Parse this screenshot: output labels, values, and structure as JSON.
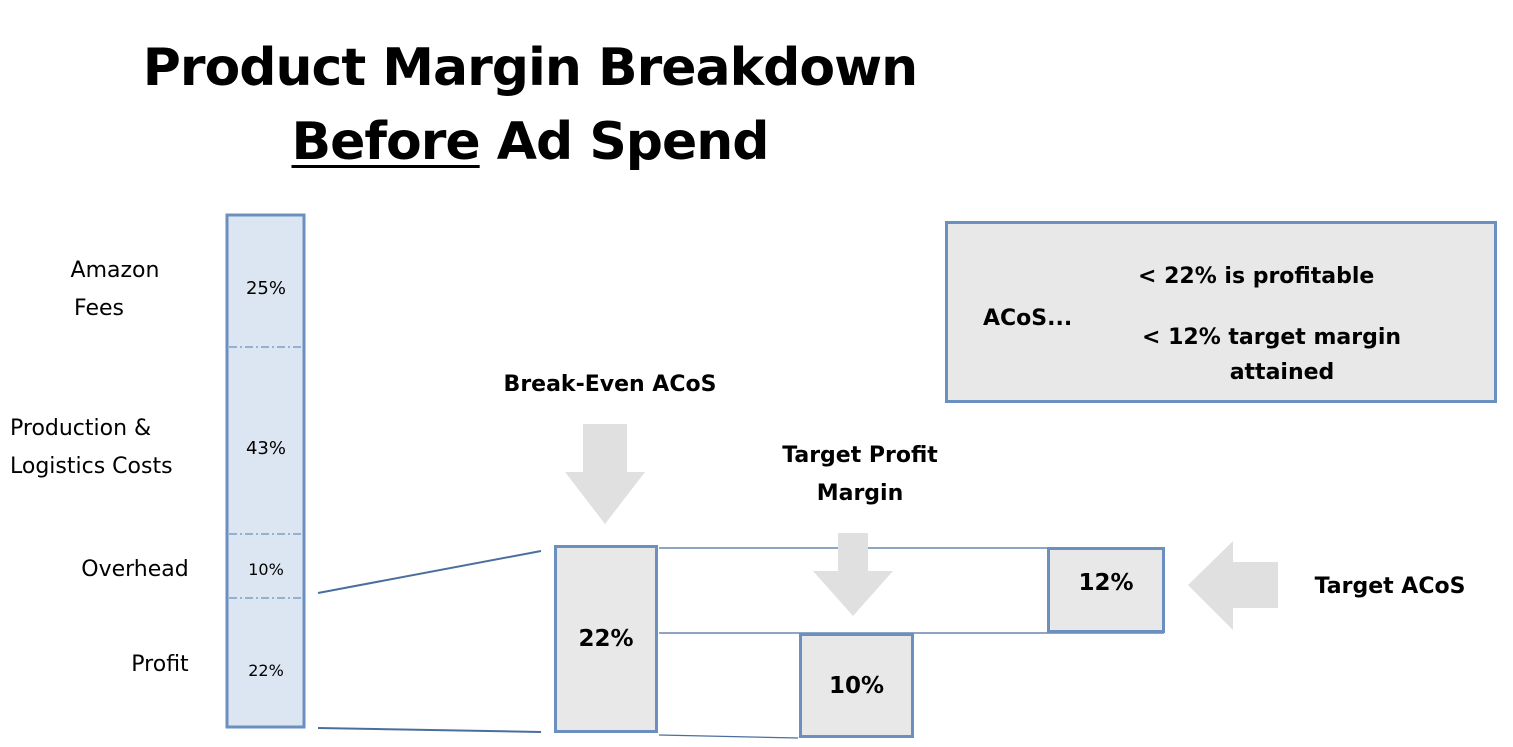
{
  "title": {
    "line1": "Product Margin Breakdown",
    "line2_underlined": "Before",
    "line2_rest": " Ad Spend"
  },
  "stack_bar": {
    "segments": [
      {
        "label_line1": "Amazon",
        "label_line2": "Fees",
        "percent": 25,
        "percent_text": "25%"
      },
      {
        "label_line1": "Production &",
        "label_line2": "Logistics Costs",
        "percent": 43,
        "percent_text": "43%"
      },
      {
        "label_line1": "Overhead",
        "label_line2": "",
        "percent": 10,
        "percent_text": "10%"
      },
      {
        "label_line1": "Profit",
        "label_line2": "",
        "percent": 22,
        "percent_text": "22%"
      }
    ],
    "fill_color": "#dce6f2",
    "border_color": "#6b8fbf"
  },
  "callouts": {
    "break_even": {
      "label": "Break-Even ACoS",
      "value_text": "22%",
      "value": 22
    },
    "target_profit": {
      "label_line1": "Target Profit",
      "label_line2": "Margin",
      "value_text": "10%",
      "value": 10
    },
    "target_acos": {
      "label": "Target ACoS",
      "value_text": "12%",
      "value": 12
    }
  },
  "legend": {
    "prefix": "ACoS...",
    "line1": "< 22% is profitable",
    "line2": "< 12% target margin",
    "line3": "attained"
  },
  "colors": {
    "arrow": "#e0e0e0",
    "box_fill": "#e8e8e8",
    "box_border": "#6b8fbf",
    "connector": "#4a6f9f"
  }
}
